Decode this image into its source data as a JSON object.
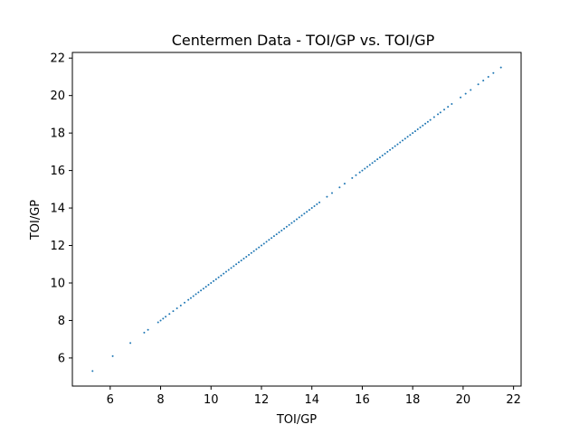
{
  "chart_data": {
    "type": "scatter",
    "title": "Centermen Data - TOI/GP vs. TOI/GP",
    "xlabel": "TOI/GP",
    "ylabel": "TOI/GP",
    "xlim": [
      4.5,
      22.3
    ],
    "ylim": [
      4.5,
      22.3
    ],
    "xticks": [
      6,
      8,
      10,
      12,
      14,
      16,
      18,
      20,
      22
    ],
    "yticks": [
      6,
      8,
      10,
      12,
      14,
      16,
      18,
      20,
      22
    ],
    "grid": false,
    "marker_color": "#1f77b4",
    "series": [
      {
        "x": [
          5.3,
          6.1,
          6.8,
          7.35,
          7.5,
          7.9,
          8.0,
          8.1,
          8.2,
          8.35,
          8.5,
          8.65,
          8.8,
          8.95,
          9.1,
          9.2,
          9.3,
          9.4,
          9.5,
          9.6,
          9.7,
          9.8,
          9.9,
          10.0,
          10.1,
          10.2,
          10.3,
          10.4,
          10.5,
          10.6,
          10.7,
          10.8,
          10.9,
          11.0,
          11.1,
          11.2,
          11.3,
          11.4,
          11.5,
          11.6,
          11.7,
          11.8,
          11.9,
          12.0,
          12.1,
          12.2,
          12.3,
          12.4,
          12.5,
          12.6,
          12.7,
          12.8,
          12.9,
          13.0,
          13.1,
          13.2,
          13.3,
          13.4,
          13.5,
          13.6,
          13.7,
          13.8,
          13.9,
          14.0,
          14.1,
          14.2,
          14.3,
          14.6,
          14.8,
          15.1,
          15.3,
          15.6,
          15.75,
          15.9,
          16.0,
          16.1,
          16.2,
          16.3,
          16.4,
          16.5,
          16.6,
          16.7,
          16.8,
          16.9,
          17.0,
          17.1,
          17.2,
          17.3,
          17.4,
          17.5,
          17.6,
          17.7,
          17.8,
          17.9,
          18.0,
          18.1,
          18.2,
          18.3,
          18.4,
          18.5,
          18.6,
          18.7,
          18.85,
          19.0,
          19.1,
          19.25,
          19.4,
          19.55,
          19.9,
          20.1,
          20.3,
          20.6,
          20.8,
          21.0,
          21.2,
          21.5
        ],
        "y": [
          5.3,
          6.1,
          6.8,
          7.35,
          7.5,
          7.9,
          8.0,
          8.1,
          8.2,
          8.35,
          8.5,
          8.65,
          8.8,
          8.95,
          9.1,
          9.2,
          9.3,
          9.4,
          9.5,
          9.6,
          9.7,
          9.8,
          9.9,
          10.0,
          10.1,
          10.2,
          10.3,
          10.4,
          10.5,
          10.6,
          10.7,
          10.8,
          10.9,
          11.0,
          11.1,
          11.2,
          11.3,
          11.4,
          11.5,
          11.6,
          11.7,
          11.8,
          11.9,
          12.0,
          12.1,
          12.2,
          12.3,
          12.4,
          12.5,
          12.6,
          12.7,
          12.8,
          12.9,
          13.0,
          13.1,
          13.2,
          13.3,
          13.4,
          13.5,
          13.6,
          13.7,
          13.8,
          13.9,
          14.0,
          14.1,
          14.2,
          14.3,
          14.6,
          14.8,
          15.1,
          15.3,
          15.6,
          15.75,
          15.9,
          16.0,
          16.1,
          16.2,
          16.3,
          16.4,
          16.5,
          16.6,
          16.7,
          16.8,
          16.9,
          17.0,
          17.1,
          17.2,
          17.3,
          17.4,
          17.5,
          17.6,
          17.7,
          17.8,
          17.9,
          18.0,
          18.1,
          18.2,
          18.3,
          18.4,
          18.5,
          18.6,
          18.7,
          18.85,
          19.0,
          19.1,
          19.25,
          19.4,
          19.55,
          19.9,
          20.1,
          20.3,
          20.6,
          20.8,
          21.0,
          21.2,
          21.5
        ]
      }
    ]
  }
}
